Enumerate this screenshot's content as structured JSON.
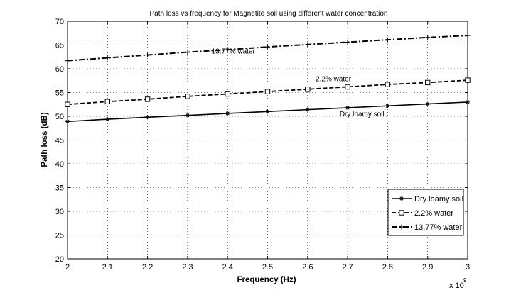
{
  "chart_data": {
    "type": "line",
    "title": "Path loss vs frequency for Magnetite soil using different water concentration",
    "xlabel": "Frequency (Hz)",
    "ylabel": "Path loss (dB)",
    "x_multiplier": "x 10",
    "x_multiplier_exp": "9",
    "xlim": [
      2,
      3
    ],
    "ylim": [
      20,
      70
    ],
    "grid": true,
    "legend_position": "bottom-right",
    "x_ticks": [
      2,
      2.1,
      2.2,
      2.3,
      2.4,
      2.5,
      2.6,
      2.7,
      2.8,
      2.9,
      3
    ],
    "x_tick_labels": [
      "2",
      "2.1",
      "2.2",
      "2.3",
      "2.4",
      "2.5",
      "2.6",
      "2.7",
      "2.8",
      "2.9",
      "3"
    ],
    "y_ticks": [
      20,
      25,
      30,
      35,
      40,
      45,
      50,
      55,
      60,
      65,
      70
    ],
    "y_tick_labels": [
      "20",
      "25",
      "30",
      "35",
      "40",
      "45",
      "50",
      "55",
      "60",
      "65",
      "70"
    ],
    "x": [
      2.0,
      2.1,
      2.2,
      2.3,
      2.4,
      2.5,
      2.6,
      2.7,
      2.8,
      2.9,
      3.0
    ],
    "series": [
      {
        "name": "Dry loamy soil",
        "style": "solid",
        "marker": "asterisk",
        "color": "#000000",
        "values": [
          48.9,
          49.4,
          49.8,
          50.2,
          50.6,
          51.0,
          51.4,
          51.8,
          52.2,
          52.6,
          53.0
        ]
      },
      {
        "name": "2.2% water",
        "style": "dashed",
        "marker": "square",
        "color": "#000000",
        "values": [
          52.5,
          53.1,
          53.6,
          54.2,
          54.7,
          55.2,
          55.7,
          56.2,
          56.7,
          57.1,
          57.6
        ]
      },
      {
        "name": "13.77% water",
        "style": "dashdot",
        "marker": "plus",
        "color": "#000000",
        "values": [
          61.7,
          62.3,
          62.9,
          63.5,
          64.0,
          64.6,
          65.1,
          65.6,
          66.1,
          66.6,
          67.0
        ]
      }
    ],
    "annotations": [
      {
        "text": "13.77% water",
        "x": 2.36,
        "y": 63.2
      },
      {
        "text": "2.2% water",
        "x": 2.62,
        "y": 57.4
      },
      {
        "text": "Dry loamy soil",
        "x": 2.68,
        "y": 50.0
      }
    ]
  }
}
